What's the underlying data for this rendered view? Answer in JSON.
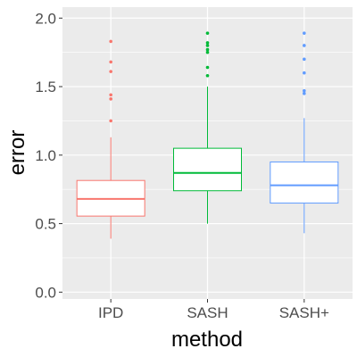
{
  "chart_data": {
    "type": "boxplot",
    "xlabel": "method",
    "ylabel": "error",
    "ylim": [
      -0.05,
      2.08
    ],
    "y_ticks": [
      0.0,
      0.5,
      1.0,
      1.5,
      2.0
    ],
    "y_tick_labels": [
      "0.0",
      "0.5",
      "1.0",
      "1.5",
      "2.0"
    ],
    "grid": true,
    "background": "#ebebeb",
    "legend": "none",
    "categories": [
      "IPD",
      "SASH",
      "SASH+"
    ],
    "boxes": [
      {
        "name": "IPD",
        "color": "#f8766d",
        "whisker_low": 0.39,
        "q1": 0.555,
        "median": 0.68,
        "q3": 0.815,
        "whisker_high": 1.13,
        "outliers": [
          1.25,
          1.41,
          1.44,
          1.61,
          1.68,
          1.83
        ]
      },
      {
        "name": "SASH",
        "color": "#00ba38",
        "whisker_low": 0.5,
        "q1": 0.74,
        "median": 0.87,
        "q3": 1.05,
        "whisker_high": 1.5,
        "outliers": [
          1.58,
          1.64,
          1.75,
          1.77,
          1.8,
          1.82,
          1.89
        ]
      },
      {
        "name": "SASH+",
        "color": "#619cff",
        "whisker_low": 0.43,
        "q1": 0.65,
        "median": 0.78,
        "q3": 0.95,
        "whisker_high": 1.27,
        "outliers": [
          1.45,
          1.47,
          1.6,
          1.7,
          1.8,
          1.89
        ]
      }
    ]
  }
}
